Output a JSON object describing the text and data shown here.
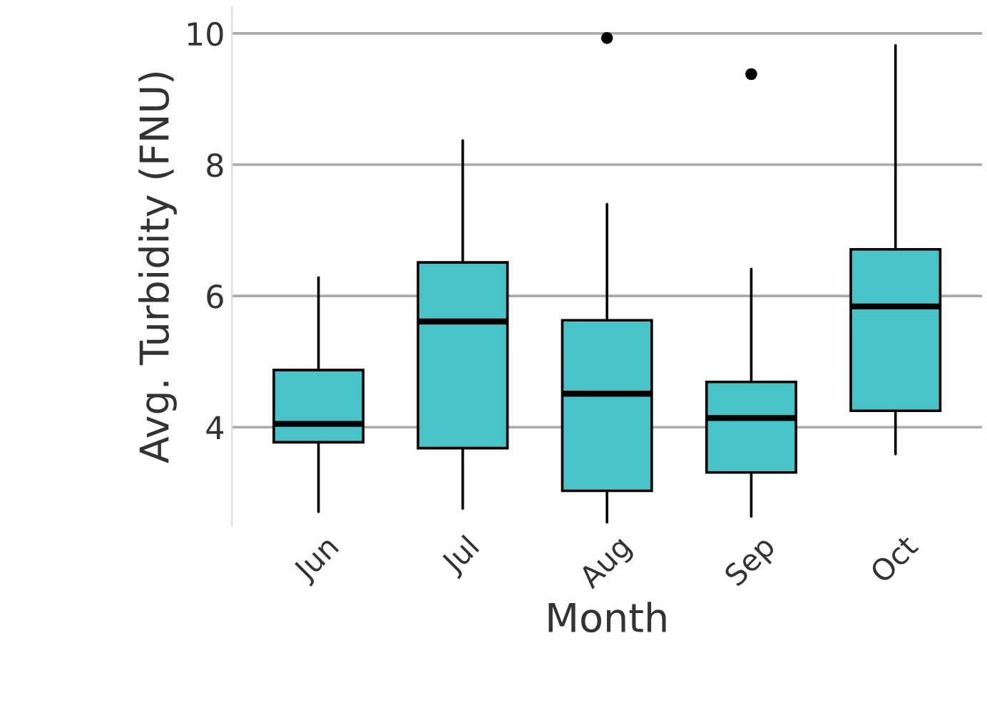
{
  "chart_data": {
    "type": "box",
    "xlabel": "Month",
    "ylabel": "Avg. Turbidity (FNU)",
    "categories": [
      "Jun",
      "Jul",
      "Aug",
      "Sep",
      "Oct"
    ],
    "color": "#48c4c9",
    "ylim": [
      2.5,
      10.4
    ],
    "yticks": [
      4,
      6,
      8,
      10
    ],
    "grid": "y",
    "boxes": [
      {
        "low": 2.71,
        "q1": 3.77,
        "median": 4.05,
        "q3": 4.87,
        "high": 6.28
      },
      {
        "low": 2.76,
        "q1": 3.68,
        "median": 5.61,
        "q3": 6.51,
        "high": 8.37
      },
      {
        "low": 2.55,
        "q1": 3.03,
        "median": 4.51,
        "q3": 5.63,
        "high": 7.4,
        "outliers": [
          9.93
        ]
      },
      {
        "low": 2.64,
        "q1": 3.31,
        "median": 4.14,
        "q3": 4.69,
        "high": 6.41,
        "outliers": [
          9.38
        ]
      },
      {
        "low": 3.59,
        "q1": 4.25,
        "median": 5.84,
        "q3": 6.71,
        "high": 9.82
      }
    ]
  }
}
